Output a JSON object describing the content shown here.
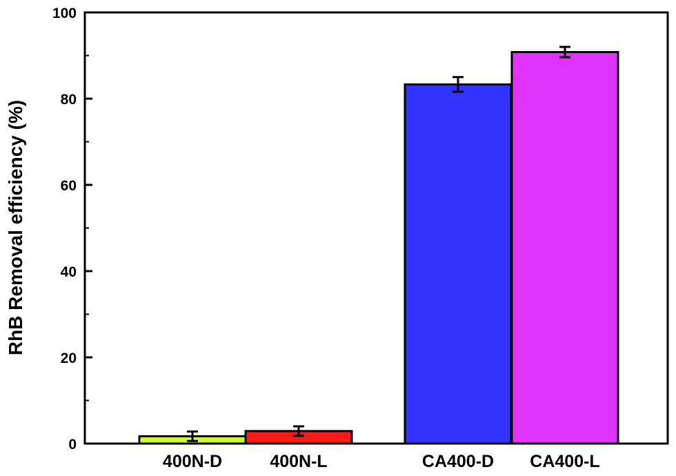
{
  "chart_data": {
    "type": "bar",
    "title": "",
    "xlabel": "",
    "ylabel": "RhB Removal efficiency (%)",
    "ylim": [
      0,
      100
    ],
    "yticks": [
      0,
      20,
      40,
      60,
      80,
      100
    ],
    "grid": false,
    "legend": "none",
    "categories": [
      "400N-D",
      "400N-L",
      "CA400-D",
      "CA400-L"
    ],
    "values": [
      1.7,
      2.9,
      83.3,
      90.8
    ],
    "errors": [
      1.1,
      1.1,
      1.7,
      1.2
    ],
    "colors": [
      "#ccff33",
      "#ff1a1a",
      "#3333ff",
      "#e033ff"
    ]
  }
}
